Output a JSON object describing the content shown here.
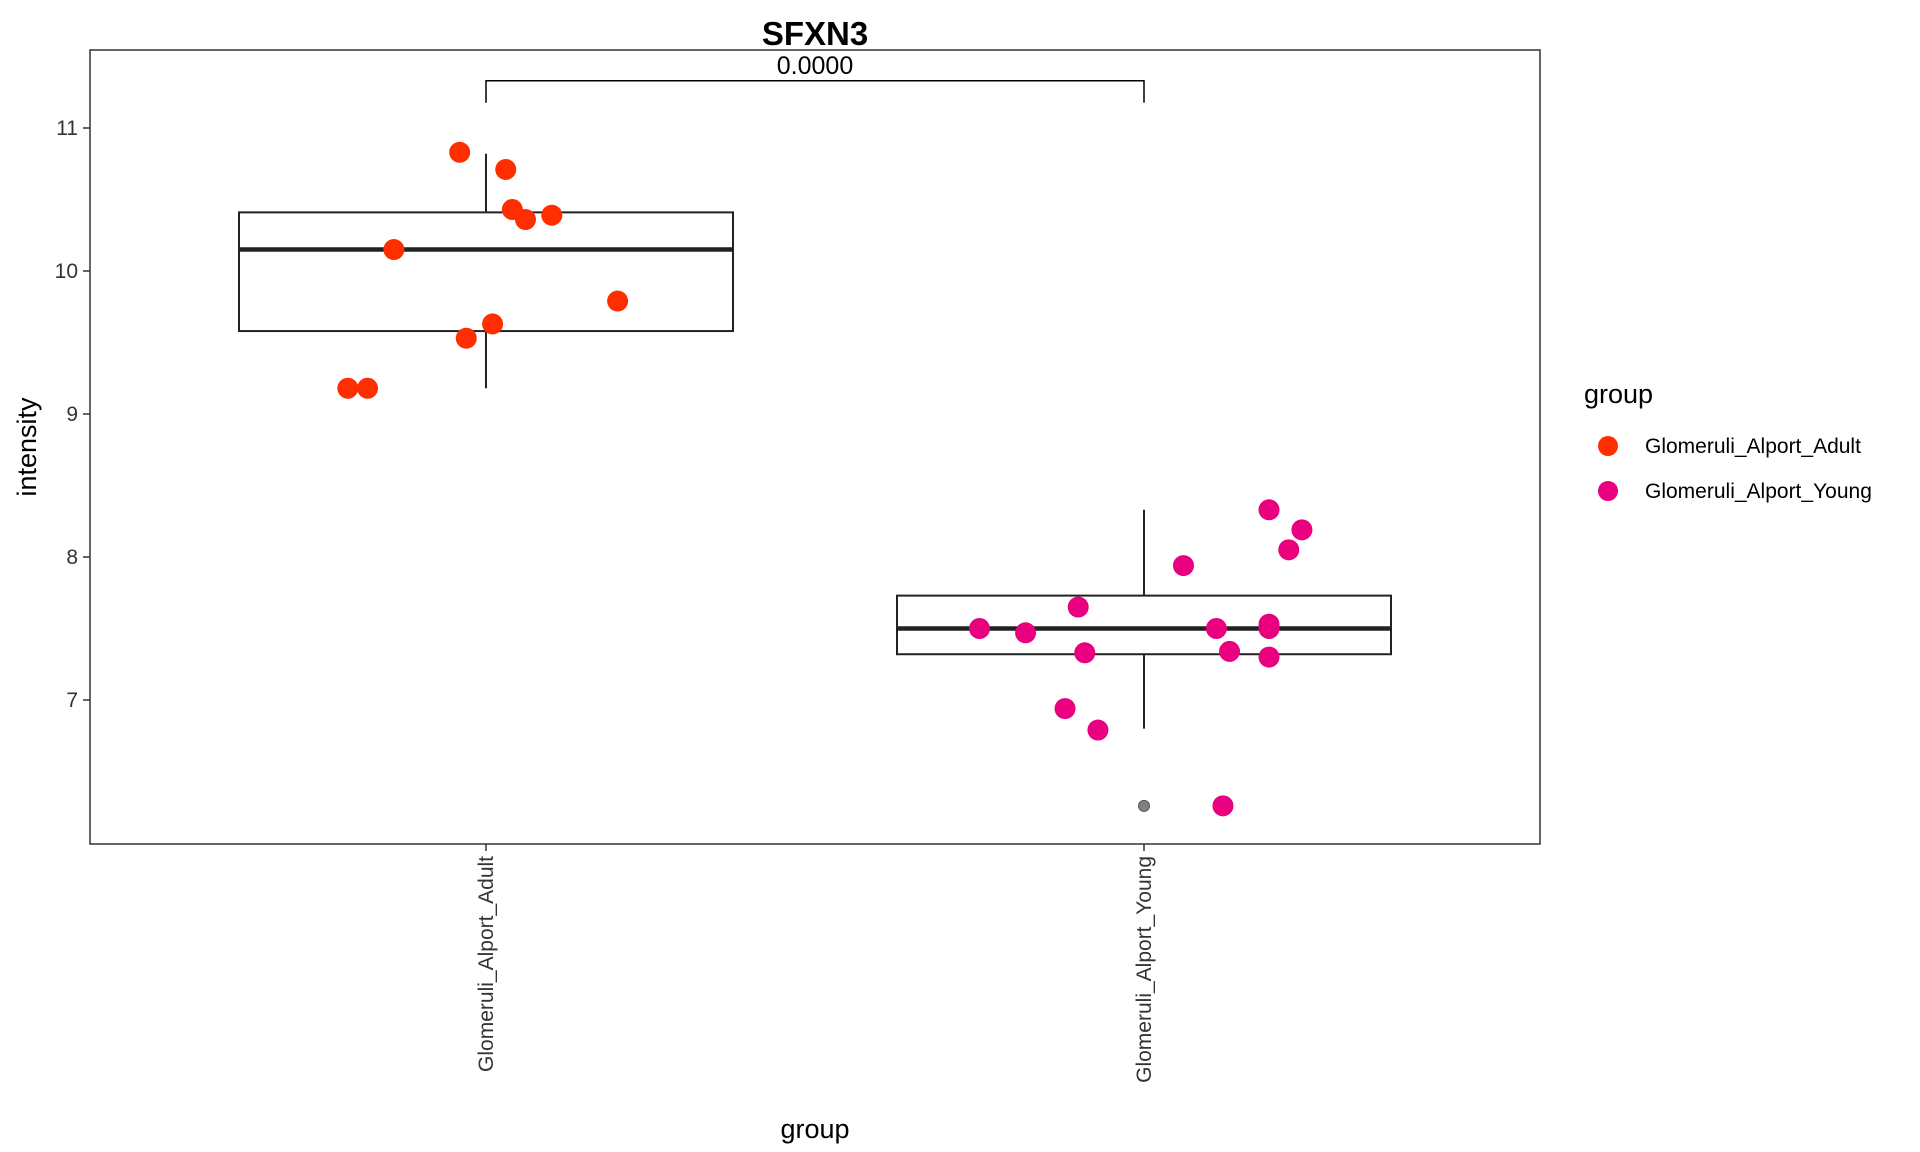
{
  "chart_data": {
    "type": "box",
    "title": "SFXN3",
    "xlabel": "group",
    "ylabel": "intensity",
    "categories": [
      "Glomeruli_Alport_Adult",
      "Glomeruli_Alport_Young"
    ],
    "ylim": [
      6.0,
      11.57
    ],
    "yticks": [
      7,
      8,
      9,
      10,
      11
    ],
    "grid": false,
    "legend": {
      "title": "group",
      "position": "right",
      "entries": [
        "Glomeruli_Alport_Adult",
        "Glomeruli_Alport_Young"
      ]
    },
    "colors": {
      "Glomeruli_Alport_Adult": "#FF2E00",
      "Glomeruli_Alport_Young": "#E8007F",
      "outlier": "#808080",
      "box": "#222222"
    },
    "annotation": {
      "label": "0.0000",
      "from": "Glomeruli_Alport_Adult",
      "to": "Glomeruli_Alport_Young",
      "y": 11.33
    },
    "boxes": [
      {
        "group": "Glomeruli_Alport_Adult",
        "whisker_low": 9.18,
        "q1": 9.58,
        "median": 10.15,
        "q3": 10.41,
        "whisker_high": 10.82,
        "outliers": []
      },
      {
        "group": "Glomeruli_Alport_Young",
        "whisker_low": 6.8,
        "q1": 7.32,
        "median": 7.5,
        "q3": 7.73,
        "whisker_high": 8.33,
        "outliers": [
          6.26
        ]
      }
    ],
    "points": [
      {
        "group": "Glomeruli_Alport_Adult",
        "x": 0.96,
        "y": 10.83
      },
      {
        "group": "Glomeruli_Alport_Adult",
        "x": 1.03,
        "y": 10.71
      },
      {
        "group": "Glomeruli_Alport_Adult",
        "x": 1.04,
        "y": 10.43
      },
      {
        "group": "Glomeruli_Alport_Adult",
        "x": 1.06,
        "y": 10.36
      },
      {
        "group": "Glomeruli_Alport_Adult",
        "x": 1.1,
        "y": 10.39
      },
      {
        "group": "Glomeruli_Alport_Adult",
        "x": 0.86,
        "y": 10.15
      },
      {
        "group": "Glomeruli_Alport_Adult",
        "x": 1.2,
        "y": 9.79
      },
      {
        "group": "Glomeruli_Alport_Adult",
        "x": 1.01,
        "y": 9.63
      },
      {
        "group": "Glomeruli_Alport_Adult",
        "x": 0.97,
        "y": 9.53
      },
      {
        "group": "Glomeruli_Alport_Adult",
        "x": 0.79,
        "y": 9.18
      },
      {
        "group": "Glomeruli_Alport_Adult",
        "x": 0.82,
        "y": 9.18
      },
      {
        "group": "Glomeruli_Alport_Young",
        "x": 2.19,
        "y": 8.33
      },
      {
        "group": "Glomeruli_Alport_Young",
        "x": 2.24,
        "y": 8.19
      },
      {
        "group": "Glomeruli_Alport_Young",
        "x": 2.22,
        "y": 8.05
      },
      {
        "group": "Glomeruli_Alport_Young",
        "x": 2.06,
        "y": 7.94
      },
      {
        "group": "Glomeruli_Alport_Young",
        "x": 1.9,
        "y": 7.65
      },
      {
        "group": "Glomeruli_Alport_Young",
        "x": 1.75,
        "y": 7.5
      },
      {
        "group": "Glomeruli_Alport_Young",
        "x": 1.82,
        "y": 7.47
      },
      {
        "group": "Glomeruli_Alport_Young",
        "x": 2.11,
        "y": 7.5
      },
      {
        "group": "Glomeruli_Alport_Young",
        "x": 2.19,
        "y": 7.53
      },
      {
        "group": "Glomeruli_Alport_Young",
        "x": 2.19,
        "y": 7.5
      },
      {
        "group": "Glomeruli_Alport_Young",
        "x": 1.91,
        "y": 7.33
      },
      {
        "group": "Glomeruli_Alport_Young",
        "x": 2.13,
        "y": 7.34
      },
      {
        "group": "Glomeruli_Alport_Young",
        "x": 2.19,
        "y": 7.3
      },
      {
        "group": "Glomeruli_Alport_Young",
        "x": 1.88,
        "y": 6.94
      },
      {
        "group": "Glomeruli_Alport_Young",
        "x": 1.93,
        "y": 6.79
      },
      {
        "group": "Glomeruli_Alport_Young",
        "x": 2.12,
        "y": 6.26
      }
    ]
  }
}
